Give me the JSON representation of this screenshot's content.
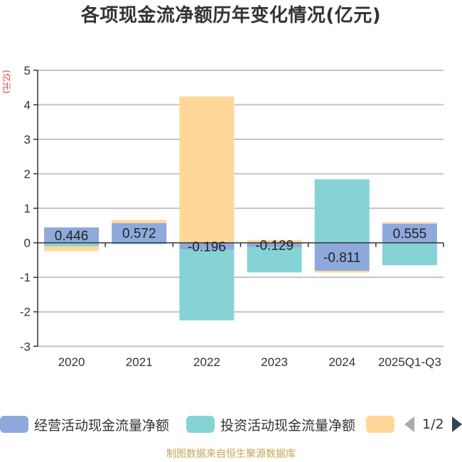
{
  "title": "各项现金流净额历年变化情况(亿元)",
  "y_axis": {
    "unit_label": "(亿元)",
    "ticks": [
      5,
      4,
      3,
      2,
      1,
      0,
      -1,
      -2,
      -3
    ]
  },
  "legend": {
    "items": [
      {
        "label": "经营活动现金流量净额",
        "color": "#8eaadc"
      },
      {
        "label": "投资活动现金流量净额",
        "color": "#86d3d6"
      },
      {
        "label": "",
        "color": "#ffd899"
      }
    ],
    "pager": "1/2"
  },
  "footer": "制图数据来自恒生聚源数据库",
  "chart_data": {
    "type": "bar",
    "stacked": true,
    "title": "各项现金流净额历年变化情况(亿元)",
    "xlabel": "",
    "ylabel": "(亿元)",
    "ylim": [
      -3,
      5
    ],
    "yticks": [
      -3,
      -2,
      -1,
      0,
      1,
      2,
      3,
      4,
      5
    ],
    "grid": true,
    "legend_position": "bottom",
    "categories": [
      "2020",
      "2021",
      "2022",
      "2023",
      "2024",
      "2025Q1-Q3"
    ],
    "series": [
      {
        "name": "经营活动现金流量净额",
        "color": "#8eaadc",
        "values": [
          0.446,
          0.572,
          -0.196,
          -0.129,
          -0.811,
          0.555
        ],
        "labels": [
          "0.446",
          "0.572",
          "-0.196",
          "-0.129",
          "-0.811",
          "0.555"
        ]
      },
      {
        "name": "投资活动现金流量净额",
        "color": "#86d3d6",
        "values": [
          -0.1,
          -0.04,
          -2.05,
          -0.73,
          1.84,
          -0.65
        ]
      },
      {
        "name": "",
        "color": "#ffd899",
        "values": [
          -0.14,
          0.09,
          4.24,
          0.08,
          -0.05,
          0.04
        ]
      }
    ]
  }
}
